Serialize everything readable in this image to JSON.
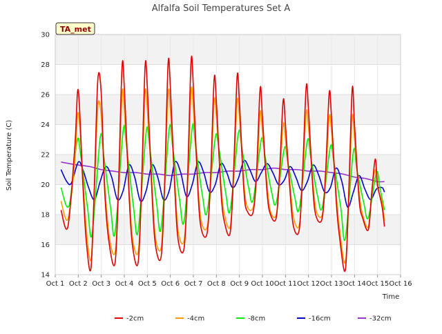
{
  "chart_data": {
    "type": "line",
    "title": "Alfalfa Soil Temperatures Set A",
    "xlabel": "Time",
    "ylabel": "Soil Temperature (C)",
    "xlim": [
      1,
      16
    ],
    "ylim": [
      14,
      30
    ],
    "x_tick_labels": [
      "Oct 1",
      "Oct 2",
      "Oct 3",
      "Oct 4",
      "Oct 5",
      "Oct 6",
      "Oct 7",
      "Oct 8",
      "Oct 9",
      "Oct 10",
      "Oct 11",
      "Oct 12",
      "Oct 13",
      "Oct 14",
      "Oct 15",
      "Oct 16"
    ],
    "y_ticks": [
      14,
      16,
      18,
      20,
      22,
      24,
      26,
      28,
      30
    ],
    "grid": true,
    "legend": "bottom",
    "station_badge": "TA_met",
    "x_unit": "day of October",
    "series": [
      {
        "name": "-2cm",
        "color": "#dd0000",
        "x": [
          1.25,
          1.55,
          1.85,
          2.0,
          2.2,
          2.35,
          2.55,
          2.7,
          2.85,
          3.0,
          3.15,
          3.35,
          3.6,
          3.75,
          3.9,
          4.0,
          4.2,
          4.35,
          4.6,
          4.75,
          4.9,
          5.0,
          5.2,
          5.35,
          5.6,
          5.75,
          5.9,
          6.0,
          6.2,
          6.35,
          6.6,
          6.75,
          6.9,
          7.0,
          7.2,
          7.35,
          7.6,
          7.75,
          7.9,
          8.0,
          8.2,
          8.35,
          8.6,
          8.75,
          8.9,
          9.0,
          9.2,
          9.35,
          9.6,
          9.75,
          9.9,
          10.0,
          10.2,
          10.35,
          10.6,
          10.75,
          10.9,
          11.0,
          11.2,
          11.35,
          11.6,
          11.75,
          11.9,
          12.0,
          12.2,
          12.35,
          12.6,
          12.75,
          12.9,
          13.0,
          13.2,
          13.35,
          13.6,
          13.75,
          13.9,
          14.0,
          14.2,
          14.35,
          14.6,
          14.75,
          14.9,
          15.0,
          15.2,
          15.3
        ],
        "y": [
          18.3,
          17.2,
          22.5,
          26.3,
          20.0,
          16.2,
          14.4,
          20.0,
          27.0,
          26.0,
          19.5,
          16.0,
          14.8,
          20.0,
          27.8,
          26.5,
          19.5,
          16.0,
          14.8,
          20.0,
          27.8,
          26.5,
          19.5,
          16.0,
          15.2,
          20.0,
          28.0,
          26.5,
          19.5,
          16.2,
          15.8,
          20.5,
          28.2,
          26.5,
          19.5,
          17.0,
          16.8,
          20.5,
          27.0,
          25.5,
          19.5,
          17.5,
          16.8,
          21.0,
          27.2,
          25.5,
          19.5,
          18.2,
          18.2,
          21.0,
          26.4,
          24.5,
          19.5,
          18.0,
          17.8,
          21.0,
          25.6,
          24.0,
          19.5,
          17.2,
          17.0,
          21.0,
          26.5,
          25.0,
          19.5,
          17.8,
          17.8,
          21.0,
          26.1,
          24.5,
          19.0,
          16.5,
          14.3,
          19.5,
          26.4,
          24.0,
          19.0,
          17.8,
          17.0,
          19.5,
          21.7,
          20.0,
          18.5,
          17.2
        ]
      },
      {
        "name": "-4cm",
        "color": "#ff9900",
        "x": [
          1.25,
          1.55,
          1.85,
          2.0,
          2.2,
          2.35,
          2.55,
          2.7,
          2.85,
          3.0,
          3.15,
          3.35,
          3.6,
          3.75,
          3.9,
          4.0,
          4.2,
          4.35,
          4.6,
          4.75,
          4.9,
          5.0,
          5.2,
          5.35,
          5.6,
          5.75,
          5.9,
          6.0,
          6.2,
          6.35,
          6.6,
          6.75,
          6.9,
          7.0,
          7.2,
          7.35,
          7.6,
          7.75,
          7.9,
          8.0,
          8.2,
          8.35,
          8.6,
          8.75,
          8.9,
          9.0,
          9.2,
          9.35,
          9.6,
          9.75,
          9.9,
          10.0,
          10.2,
          10.35,
          10.6,
          10.75,
          10.9,
          11.0,
          11.2,
          11.35,
          11.6,
          11.75,
          11.9,
          12.0,
          12.2,
          12.35,
          12.6,
          12.75,
          12.9,
          13.0,
          13.2,
          13.35,
          13.6,
          13.75,
          13.9,
          14.0,
          14.2,
          14.35,
          14.6,
          14.75,
          14.9,
          15.0,
          15.2,
          15.3
        ],
        "y": [
          18.9,
          17.7,
          21.5,
          24.8,
          20.5,
          17.0,
          15.0,
          19.5,
          25.2,
          24.5,
          20.0,
          16.5,
          15.5,
          19.5,
          26.0,
          25.0,
          20.0,
          16.5,
          15.5,
          19.5,
          26.0,
          25.0,
          20.0,
          16.5,
          15.8,
          19.8,
          26.0,
          25.0,
          20.0,
          16.8,
          16.3,
          20.0,
          26.2,
          25.0,
          20.0,
          17.5,
          17.2,
          20.0,
          25.5,
          24.5,
          20.0,
          18.0,
          17.2,
          20.5,
          25.5,
          24.5,
          20.0,
          18.5,
          18.5,
          20.5,
          24.8,
          23.5,
          20.0,
          18.2,
          18.0,
          20.5,
          24.0,
          23.0,
          20.0,
          17.8,
          17.3,
          20.5,
          24.8,
          23.8,
          20.0,
          18.2,
          18.0,
          20.5,
          24.5,
          23.5,
          19.5,
          17.0,
          14.8,
          19.0,
          24.5,
          23.0,
          19.5,
          18.0,
          17.2,
          19.5,
          21.0,
          19.8,
          18.8,
          17.6
        ]
      },
      {
        "name": "-8cm",
        "color": "#00ee00",
        "x": [
          1.25,
          1.6,
          1.95,
          2.1,
          2.4,
          2.6,
          2.95,
          3.1,
          3.4,
          3.6,
          3.95,
          4.1,
          4.4,
          4.6,
          4.95,
          5.1,
          5.4,
          5.6,
          5.95,
          6.1,
          6.4,
          6.6,
          6.95,
          7.1,
          7.4,
          7.6,
          7.95,
          8.1,
          8.4,
          8.6,
          8.95,
          9.1,
          9.4,
          9.6,
          9.95,
          10.1,
          10.4,
          10.6,
          10.95,
          11.1,
          11.4,
          11.6,
          11.95,
          12.1,
          12.4,
          12.6,
          12.95,
          13.1,
          13.4,
          13.6,
          13.95,
          14.1,
          14.4,
          14.6,
          14.95,
          15.1,
          15.3
        ],
        "y": [
          19.8,
          18.6,
          22.9,
          22.0,
          18.5,
          16.7,
          23.1,
          22.0,
          18.5,
          16.8,
          23.6,
          22.5,
          18.5,
          16.9,
          23.5,
          22.5,
          18.8,
          17.1,
          23.7,
          22.5,
          19.0,
          17.6,
          23.8,
          22.5,
          19.2,
          18.2,
          23.1,
          22.5,
          19.5,
          18.3,
          23.4,
          22.5,
          19.8,
          19.0,
          23.0,
          22.0,
          19.5,
          18.8,
          22.4,
          21.5,
          19.2,
          18.4,
          22.9,
          21.8,
          19.2,
          18.5,
          22.5,
          21.5,
          18.5,
          16.4,
          22.2,
          21.0,
          18.8,
          17.8,
          20.8,
          19.8,
          18.3
        ]
      },
      {
        "name": "-16cm",
        "color": "#0000cc",
        "x": [
          1.25,
          1.5,
          1.7,
          2.0,
          2.2,
          2.45,
          2.7,
          2.95,
          3.2,
          3.45,
          3.7,
          3.95,
          4.2,
          4.45,
          4.7,
          4.95,
          5.2,
          5.45,
          5.7,
          5.95,
          6.2,
          6.45,
          6.7,
          6.95,
          7.2,
          7.45,
          7.7,
          7.95,
          8.2,
          8.45,
          8.7,
          8.95,
          9.2,
          9.45,
          9.7,
          9.95,
          10.2,
          10.45,
          10.7,
          10.95,
          11.2,
          11.45,
          11.7,
          11.95,
          12.2,
          12.45,
          12.7,
          12.95,
          13.2,
          13.45,
          13.7,
          13.95,
          14.2,
          14.45,
          14.7,
          14.95,
          15.2,
          15.3
        ],
        "y": [
          21.0,
          20.2,
          20.1,
          21.5,
          21.0,
          19.8,
          19.0,
          20.2,
          21.2,
          20.5,
          19.0,
          19.6,
          21.3,
          20.5,
          18.9,
          19.6,
          21.3,
          20.5,
          19.0,
          19.6,
          21.5,
          20.8,
          19.2,
          20.0,
          21.5,
          20.8,
          19.5,
          20.0,
          21.4,
          20.8,
          19.8,
          20.4,
          21.6,
          21.0,
          20.2,
          20.8,
          21.4,
          20.8,
          20.0,
          20.3,
          21.2,
          20.5,
          19.6,
          20.2,
          21.3,
          20.6,
          19.5,
          19.8,
          21.1,
          20.2,
          18.5,
          19.5,
          20.6,
          19.7,
          19.0,
          19.7,
          19.8,
          19.5
        ]
      },
      {
        "name": "-32cm",
        "color": "#9933cc",
        "x": [
          1.25,
          1.6,
          2.0,
          2.5,
          3.0,
          3.5,
          4.0,
          4.5,
          5.0,
          5.5,
          6.0,
          6.5,
          7.0,
          7.5,
          8.0,
          8.5,
          9.0,
          9.5,
          10.0,
          10.5,
          11.0,
          11.5,
          12.0,
          12.5,
          13.0,
          13.5,
          14.0,
          14.5,
          15.0,
          15.3
        ],
        "y": [
          21.5,
          21.4,
          21.3,
          21.2,
          21.0,
          20.9,
          20.8,
          20.8,
          20.7,
          20.7,
          20.6,
          20.7,
          20.7,
          20.8,
          20.8,
          20.9,
          20.9,
          21.0,
          21.0,
          21.1,
          21.0,
          21.0,
          20.9,
          20.9,
          20.8,
          20.7,
          20.5,
          20.4,
          20.2,
          20.2
        ]
      }
    ]
  }
}
